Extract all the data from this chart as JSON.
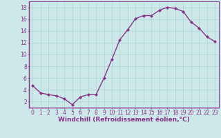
{
  "x": [
    0,
    1,
    2,
    3,
    4,
    5,
    6,
    7,
    8,
    9,
    10,
    11,
    12,
    13,
    14,
    15,
    16,
    17,
    18,
    19,
    20,
    21,
    22,
    23
  ],
  "y": [
    4.7,
    3.5,
    3.2,
    3.0,
    2.5,
    1.5,
    2.8,
    3.2,
    3.2,
    6.0,
    9.2,
    12.5,
    14.2,
    16.1,
    16.6,
    16.6,
    17.5,
    18.0,
    17.8,
    17.3,
    15.5,
    14.5,
    13.0,
    12.2
  ],
  "line_color": "#883388",
  "marker": "D",
  "marker_size": 2.0,
  "line_width": 1.0,
  "bg_color": "#cce8e8",
  "grid_color": "#aad4d4",
  "xlabel": "Windchill (Refroidissement éolien,°C)",
  "xlabel_fontsize": 6.5,
  "tick_fontsize": 5.5,
  "ylim": [
    1,
    19
  ],
  "xlim": [
    -0.5,
    23.5
  ],
  "yticks": [
    2,
    4,
    6,
    8,
    10,
    12,
    14,
    16,
    18
  ],
  "xticks": [
    0,
    1,
    2,
    3,
    4,
    5,
    6,
    7,
    8,
    9,
    10,
    11,
    12,
    13,
    14,
    15,
    16,
    17,
    18,
    19,
    20,
    21,
    22,
    23
  ]
}
